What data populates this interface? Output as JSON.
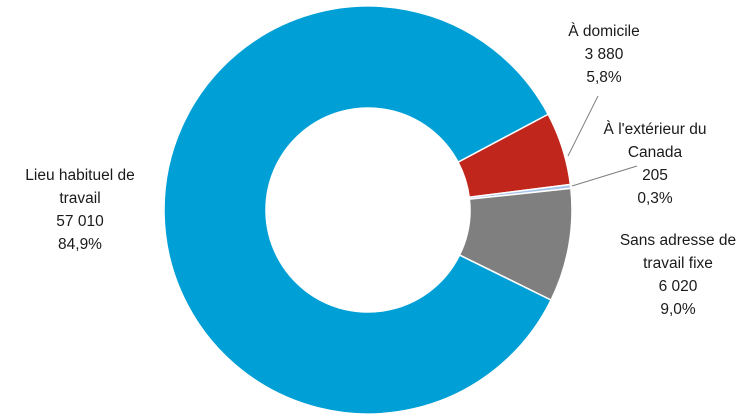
{
  "chart_data": {
    "type": "pie",
    "variant": "donut",
    "title": "",
    "legend": "none",
    "start_angle_deg": 62,
    "direction": "clockwise",
    "slices": [
      {
        "name": "À domicile",
        "label_lines": [
          "À domicile"
        ],
        "value": 3880,
        "value_text": "3 880",
        "percent_text": "5,8%",
        "color": "#c0261b"
      },
      {
        "name": "À l'extérieur du Canada",
        "label_lines": [
          "À l'extérieur du",
          "Canada"
        ],
        "value": 205,
        "value_text": "205",
        "percent_text": "0,3%",
        "color": "#a9c4e8"
      },
      {
        "name": "Sans adresse de travail fixe",
        "label_lines": [
          "Sans adresse de",
          "travail fixe"
        ],
        "value": 6020,
        "value_text": "6 020",
        "percent_text": "9,0%",
        "color": "#7f7f7f"
      },
      {
        "name": "Lieu habituel de travail",
        "label_lines": [
          "Lieu habituel de",
          "travail"
        ],
        "value": 57010,
        "value_text": "57 010",
        "percent_text": "84,9%",
        "color": "#009fd6"
      }
    ]
  }
}
